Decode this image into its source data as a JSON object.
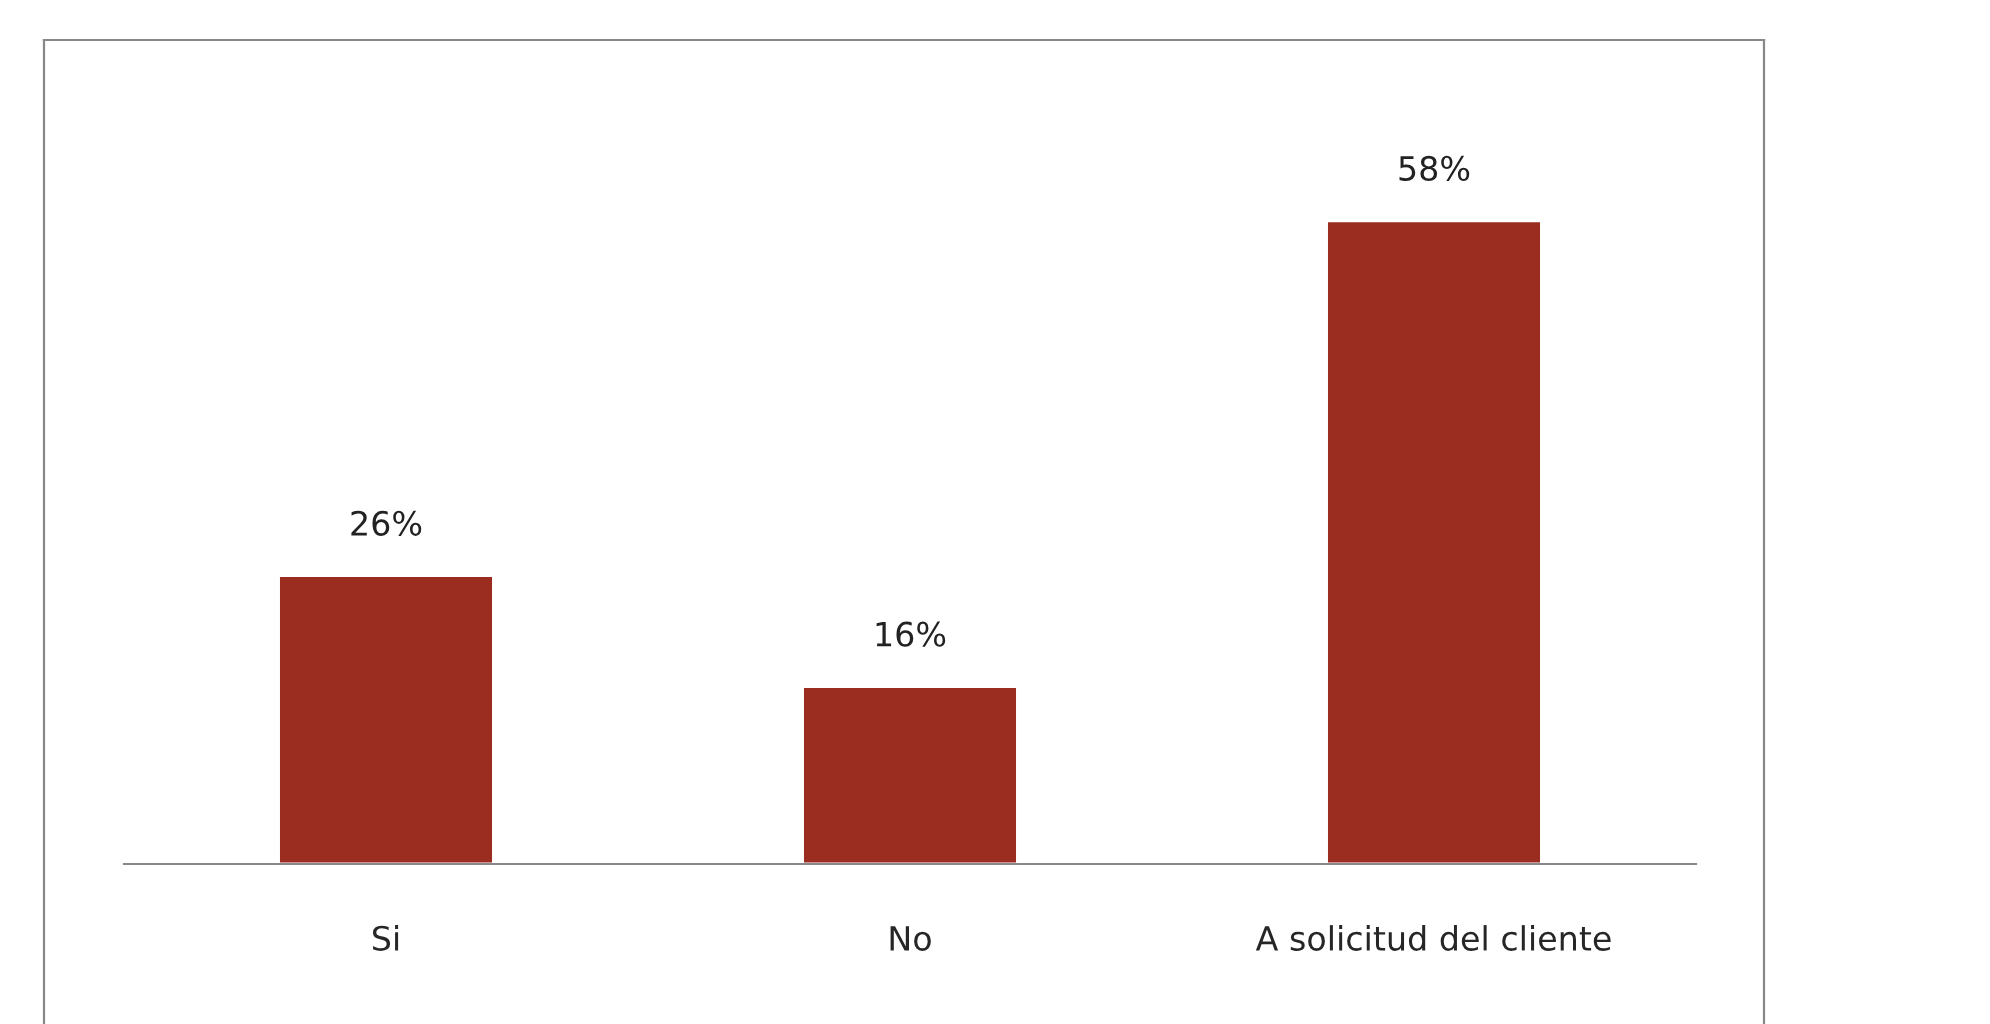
{
  "chart_data": {
    "type": "bar",
    "categories": [
      "Si",
      "No",
      "A solicitud del cliente"
    ],
    "values": [
      26,
      16,
      58
    ],
    "value_labels": [
      "26%",
      "16%",
      "58%"
    ],
    "color": "#9b2d20",
    "grid": false,
    "legend": false
  }
}
